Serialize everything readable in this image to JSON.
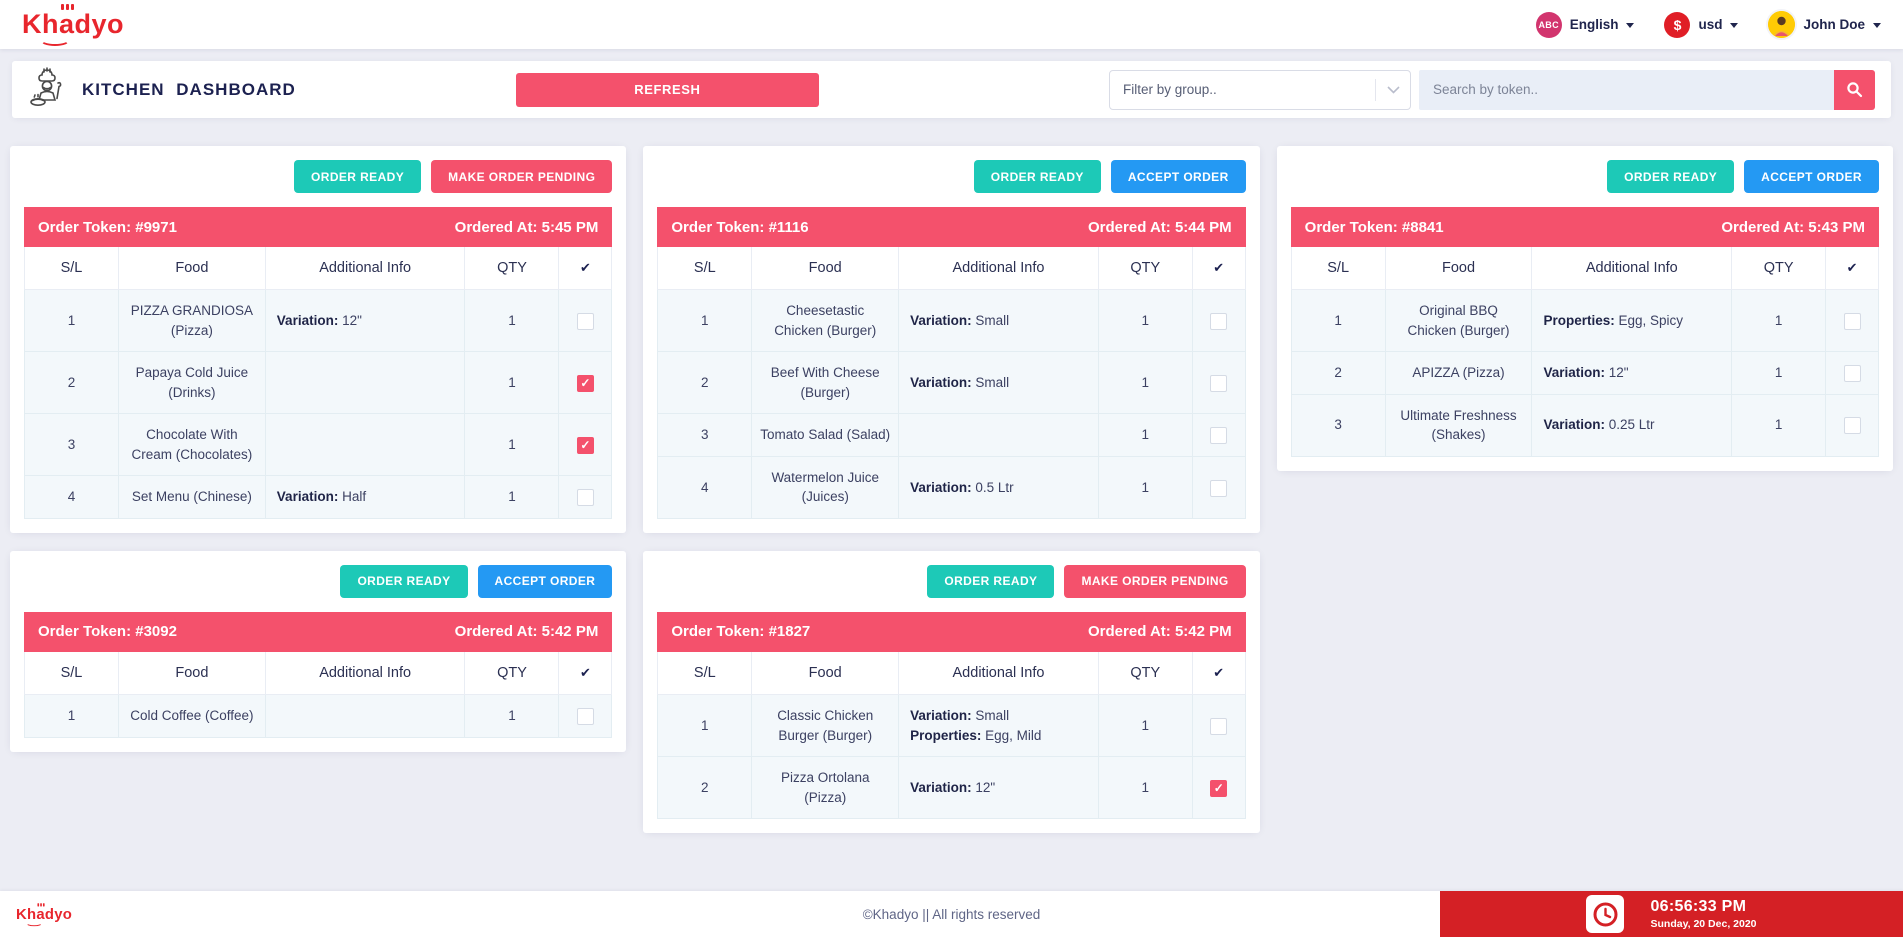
{
  "navbar": {
    "brand": "Khadyo",
    "language": {
      "badge": "ABC",
      "label": "English"
    },
    "currency": {
      "badge": "$",
      "label": "usd"
    },
    "user": {
      "name": "John Doe"
    }
  },
  "header": {
    "title": "KITCHEN DASHBOARD",
    "refresh_label": "REFRESH",
    "filter_placeholder": "Filter by group..",
    "search_placeholder": "Search by token.."
  },
  "buttons": {
    "order_ready": "ORDER READY",
    "accept_order": "ACCEPT ORDER",
    "make_order_pending": "MAKE ORDER PENDING"
  },
  "labels": {
    "order_token_prefix": "Order Token: ",
    "ordered_at_prefix": "Ordered At: "
  },
  "table_headers": {
    "sl": "S/L",
    "food": "Food",
    "info": "Additional Info",
    "qty": "QTY",
    "check": "✔"
  },
  "orders": [
    {
      "token": "#9971",
      "ordered_at": "5:45 PM",
      "actions": [
        "order_ready",
        "make_order_pending"
      ],
      "items": [
        {
          "sl": "1",
          "food": "PIZZA GRANDIOSA (Pizza)",
          "info": [
            {
              "label": "Variation",
              "value": "12\""
            }
          ],
          "qty": "1",
          "checked": false
        },
        {
          "sl": "2",
          "food": "Papaya Cold Juice (Drinks)",
          "info": [],
          "qty": "1",
          "checked": true
        },
        {
          "sl": "3",
          "food": "Chocolate With Cream (Chocolates)",
          "info": [],
          "qty": "1",
          "checked": true
        },
        {
          "sl": "4",
          "food": "Set Menu (Chinese)",
          "info": [
            {
              "label": "Variation",
              "value": "Half"
            }
          ],
          "qty": "1",
          "checked": false
        }
      ]
    },
    {
      "token": "#1116",
      "ordered_at": "5:44 PM",
      "actions": [
        "order_ready",
        "accept_order"
      ],
      "items": [
        {
          "sl": "1",
          "food": "Cheesetastic Chicken (Burger)",
          "info": [
            {
              "label": "Variation",
              "value": "Small"
            }
          ],
          "qty": "1",
          "checked": false
        },
        {
          "sl": "2",
          "food": "Beef With Cheese (Burger)",
          "info": [
            {
              "label": "Variation",
              "value": "Small"
            }
          ],
          "qty": "1",
          "checked": false
        },
        {
          "sl": "3",
          "food": "Tomato Salad (Salad)",
          "info": [],
          "qty": "1",
          "checked": false
        },
        {
          "sl": "4",
          "food": "Watermelon Juice (Juices)",
          "info": [
            {
              "label": "Variation",
              "value": "0.5 Ltr"
            }
          ],
          "qty": "1",
          "checked": false
        }
      ]
    },
    {
      "token": "#8841",
      "ordered_at": "5:43 PM",
      "actions": [
        "order_ready",
        "accept_order"
      ],
      "items": [
        {
          "sl": "1",
          "food": "Original BBQ Chicken (Burger)",
          "info": [
            {
              "label": "Properties",
              "value": "Egg, Spicy"
            }
          ],
          "qty": "1",
          "checked": false
        },
        {
          "sl": "2",
          "food": "APIZZA (Pizza)",
          "info": [
            {
              "label": "Variation",
              "value": "12\""
            }
          ],
          "qty": "1",
          "checked": false
        },
        {
          "sl": "3",
          "food": "Ultimate Freshness (Shakes)",
          "info": [
            {
              "label": "Variation",
              "value": "0.25 Ltr"
            }
          ],
          "qty": "1",
          "checked": false
        }
      ]
    },
    {
      "token": "#3092",
      "ordered_at": "5:42 PM",
      "actions": [
        "order_ready",
        "accept_order"
      ],
      "items": [
        {
          "sl": "1",
          "food": "Cold Coffee (Coffee)",
          "info": [],
          "qty": "1",
          "checked": false
        }
      ]
    },
    {
      "token": "#1827",
      "ordered_at": "5:42 PM",
      "actions": [
        "order_ready",
        "make_order_pending"
      ],
      "items": [
        {
          "sl": "1",
          "food": "Classic Chicken Burger (Burger)",
          "info": [
            {
              "label": "Variation",
              "value": "Small"
            },
            {
              "label": "Properties",
              "value": "Egg, Mild"
            }
          ],
          "qty": "1",
          "checked": false
        },
        {
          "sl": "2",
          "food": "Pizza Ortolana (Pizza)",
          "info": [
            {
              "label": "Variation",
              "value": "12\""
            }
          ],
          "qty": "1",
          "checked": true
        }
      ]
    }
  ],
  "footer": {
    "brand": "Khadyo",
    "copyright": "©Khadyo || All rights reserved",
    "time": "06:56:33 PM",
    "date": "Sunday, 20 Dec, 2020"
  },
  "colors": {
    "accent_pink": "#f4516c",
    "brand_red": "#e8262d",
    "footer_red": "#d42025",
    "success_green": "#1dc9b7",
    "info_blue": "#2499f3",
    "page_bg": "#ecedf4",
    "navy_text": "#1c2150"
  }
}
